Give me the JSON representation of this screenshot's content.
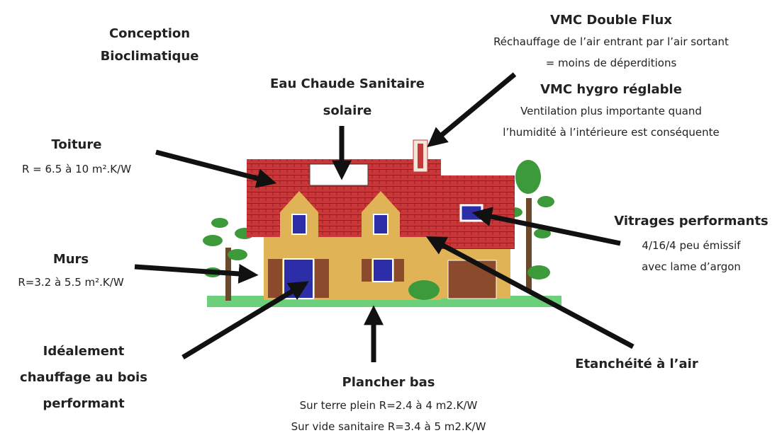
{
  "title": [
    "Conception",
    "Bioclimatique"
  ],
  "labels": [
    {
      "heading": [
        "VMC Double Flux"
      ],
      "details": [
        "Réchauffage de l’air entrant par l’air sortant",
        "= moins de déperditions"
      ]
    },
    {
      "heading": [
        "VMC hygro réglable"
      ],
      "details": [
        "Ventilation plus importante quand",
        "l’humidité à l’intérieure est conséquente"
      ]
    },
    {
      "heading": [
        "Eau Chaude Sanitaire",
        "solaire"
      ],
      "details": []
    },
    {
      "heading": [
        "Toiture"
      ],
      "details": [
        "R = 6.5 à 10 m².K/W"
      ]
    },
    {
      "heading": [
        "Murs"
      ],
      "details": [
        "R=3.2 à 5.5 m².K/W"
      ]
    },
    {
      "heading": [
        "Vitrages performants"
      ],
      "details": [
        "4/16/4 peu émissif",
        "avec lame d’argon"
      ]
    },
    {
      "heading": [
        "Idéalement",
        "chauffage au bois",
        "performant"
      ],
      "details": []
    },
    {
      "heading": [
        "Etanchéité à l’air"
      ],
      "details": []
    },
    {
      "heading": [
        "Plancher bas"
      ],
      "details": [
        "Sur terre plein R=2.4 à 4 m2.K/W",
        "Sur vide sanitaire R=3.4 à 5 m2.K/W"
      ]
    }
  ]
}
